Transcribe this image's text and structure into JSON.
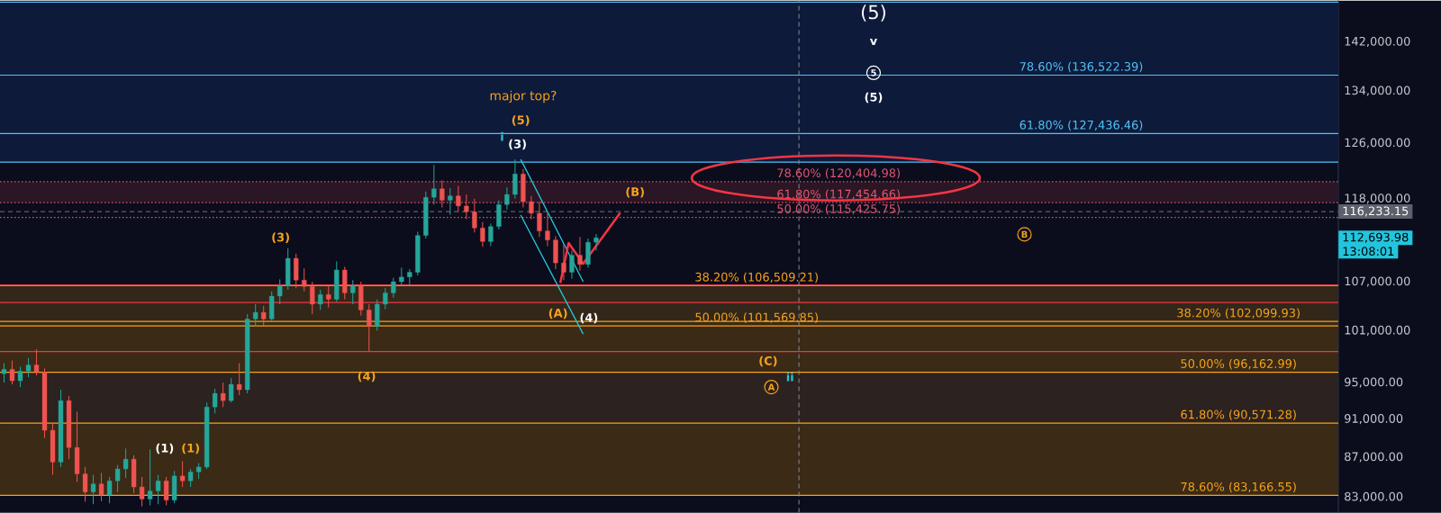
{
  "chart_data": {
    "type": "candlestick",
    "log": true,
    "tick_labels": "y",
    "ylim": [
      81500,
      149100
    ],
    "yticks": [
      {
        "value": 83000,
        "label": "83,000.00"
      },
      {
        "value": 87000,
        "label": "87,000.00"
      },
      {
        "value": 91000,
        "label": "91,000.00"
      },
      {
        "value": 95000,
        "label": "95,000.00"
      },
      {
        "value": 101000,
        "label": "101,000.00"
      },
      {
        "value": 107000,
        "label": "107,000.00"
      },
      {
        "value": 118000,
        "label": "118,000.00"
      },
      {
        "value": 126000,
        "label": "126,000.00"
      },
      {
        "value": 134000,
        "label": "134,000.00"
      },
      {
        "value": 142000,
        "label": "142,000.00"
      }
    ],
    "categories": [
      null,
      null,
      null,
      null,
      null,
      null,
      null,
      null,
      null,
      null,
      null,
      null,
      null,
      null,
      null,
      null,
      null,
      null,
      null,
      null,
      null,
      null,
      null,
      null,
      null,
      null,
      null,
      null,
      null,
      null,
      null,
      null,
      null,
      null,
      null,
      null,
      null,
      null,
      null,
      null,
      null,
      null,
      null,
      null,
      null,
      null,
      null,
      null,
      null,
      null,
      null,
      null,
      null,
      null,
      null,
      null,
      null,
      null,
      null,
      null,
      null,
      null,
      null,
      null,
      null,
      null,
      null,
      null,
      null,
      null,
      null,
      null,
      null,
      null,
      null,
      null,
      null,
      null,
      null,
      null,
      null,
      null,
      null,
      null,
      null,
      null,
      null,
      null,
      null,
      null,
      null,
      null,
      null,
      null,
      null,
      null,
      null,
      null,
      null,
      null,
      null,
      null,
      null,
      null,
      null,
      null,
      null,
      null,
      null,
      null,
      null,
      null,
      null,
      null,
      null,
      null,
      null,
      null,
      null,
      null,
      null,
      null,
      null,
      null,
      null,
      null,
      null,
      null,
      null,
      null,
      null,
      null,
      null,
      null,
      null,
      null,
      null,
      null,
      null,
      null,
      null,
      null,
      null,
      null,
      null,
      null,
      null,
      null,
      null,
      null,
      null,
      null,
      null,
      null,
      null,
      null,
      null,
      null,
      null,
      null,
      null,
      null,
      null,
      null,
      null
    ],
    "ohlc": [
      [
        96000,
        97200,
        95000,
        96500
      ],
      [
        96500,
        97500,
        94800,
        95200
      ],
      [
        95200,
        96800,
        94500,
        96300
      ],
      [
        96300,
        97800,
        95600,
        97000
      ],
      [
        97000,
        98800,
        95800,
        96200
      ],
      [
        96200,
        96600,
        89000,
        89800
      ],
      [
        89800,
        90500,
        85200,
        86500
      ],
      [
        86500,
        94200,
        86000,
        93000
      ],
      [
        93000,
        93500,
        86800,
        88000
      ],
      [
        88000,
        91800,
        84500,
        85300
      ],
      [
        85300,
        86000,
        82550,
        83500
      ],
      [
        83500,
        85200,
        82300,
        84300
      ],
      [
        84300,
        85400,
        82600,
        83200
      ],
      [
        83200,
        85000,
        82400,
        84600
      ],
      [
        84600,
        86200,
        83500,
        85800
      ],
      [
        85800,
        87900,
        84900,
        86800
      ],
      [
        86800,
        87200,
        83400,
        84000
      ],
      [
        84000,
        85000,
        82100,
        82800
      ],
      [
        82800,
        87800,
        82200,
        83600
      ],
      [
        83600,
        85200,
        82300,
        84600
      ],
      [
        84600,
        85000,
        82200,
        82700
      ],
      [
        82700,
        85600,
        82400,
        85100
      ],
      [
        85100,
        86600,
        84000,
        84600
      ],
      [
        84600,
        85800,
        84000,
        85500
      ],
      [
        85500,
        86400,
        84800,
        86000
      ],
      [
        86000,
        92800,
        85800,
        92300
      ],
      [
        92300,
        94300,
        91600,
        93800
      ],
      [
        93800,
        95000,
        92300,
        93000
      ],
      [
        93000,
        95500,
        92800,
        94800
      ],
      [
        94800,
        97200,
        93600,
        94200
      ],
      [
        94200,
        103000,
        93800,
        102400
      ],
      [
        102400,
        104200,
        101500,
        103200
      ],
      [
        103200,
        104000,
        101600,
        102400
      ],
      [
        102400,
        105800,
        102000,
        105200
      ],
      [
        105200,
        107300,
        104200,
        106500
      ],
      [
        106500,
        111300,
        106000,
        110000
      ],
      [
        110000,
        110600,
        106200,
        107200
      ],
      [
        107200,
        108700,
        105800,
        106400
      ],
      [
        106400,
        107000,
        103000,
        104200
      ],
      [
        104200,
        106000,
        103500,
        105400
      ],
      [
        105400,
        106500,
        103800,
        104800
      ],
      [
        104800,
        109600,
        104500,
        108500
      ],
      [
        108500,
        108900,
        104800,
        105600
      ],
      [
        105600,
        107200,
        104200,
        106500
      ],
      [
        106500,
        107000,
        102800,
        103500
      ],
      [
        103500,
        104200,
        98560,
        101500
      ],
      [
        101500,
        104800,
        101000,
        104200
      ],
      [
        104200,
        106200,
        103600,
        105600
      ],
      [
        105600,
        107500,
        105000,
        107000
      ],
      [
        107000,
        108800,
        106500,
        107600
      ],
      [
        107600,
        108600,
        106600,
        108200
      ],
      [
        108200,
        113500,
        107800,
        113000
      ],
      [
        113000,
        119000,
        112600,
        118200
      ],
      [
        118200,
        122800,
        117200,
        119400
      ],
      [
        119400,
        120600,
        116800,
        117800
      ],
      [
        117800,
        119500,
        115800,
        118400
      ],
      [
        118400,
        119800,
        116200,
        117000
      ],
      [
        117000,
        118600,
        115200,
        116200
      ],
      [
        116200,
        118000,
        113400,
        114000
      ],
      [
        114000,
        114800,
        111500,
        112200
      ],
      [
        112200,
        114600,
        111600,
        114200
      ],
      [
        114200,
        117800,
        113800,
        117200
      ],
      [
        117200,
        119600,
        116500,
        118600
      ],
      [
        118600,
        123600,
        118000,
        121500
      ],
      [
        121500,
        122200,
        116800,
        117600
      ],
      [
        117600,
        118400,
        115200,
        116000
      ],
      [
        116000,
        117600,
        112800,
        113600
      ],
      [
        113600,
        116000,
        111600,
        112400
      ],
      [
        112400,
        112900,
        108600,
        109400
      ],
      [
        109400,
        111800,
        107200,
        108200
      ],
      [
        108200,
        111000,
        107400,
        110400
      ],
      [
        110400,
        112800,
        108400,
        109200
      ],
      [
        109200,
        112600,
        108800,
        112100
      ],
      [
        112100,
        113200,
        111000,
        112693.98
      ],
      null,
      null,
      null,
      null,
      null,
      null,
      null,
      null,
      null,
      null,
      null,
      null,
      null,
      null,
      null,
      null,
      null,
      null,
      null,
      null,
      null,
      null,
      null,
      null,
      null,
      null,
      null,
      null,
      null,
      null,
      null,
      null,
      null,
      null,
      null,
      null,
      null,
      null,
      null,
      null,
      null,
      null,
      null,
      null,
      null,
      null,
      null,
      null,
      null,
      null,
      null,
      null,
      null,
      null,
      null,
      null,
      null,
      null,
      null,
      null,
      null,
      null,
      null,
      null,
      null,
      null,
      null,
      null,
      null,
      null,
      null,
      null,
      null,
      null,
      null,
      null,
      null,
      null,
      null,
      null,
      null,
      null,
      null,
      null,
      null,
      null,
      null,
      null,
      null,
      null,
      null
    ],
    "colors": [
      "#26a69a",
      "#ef5350",
      "#26a69a",
      "#26a69a",
      "#ef5350",
      "#ef5350",
      "#ef5350",
      "#26a69a",
      "#ef5350",
      "#ef5350",
      "#ef5350",
      "#26a69a",
      "#ef5350",
      "#26a69a",
      "#26a69a",
      "#26a69a",
      "#ef5350",
      "#ef5350",
      "#26a69a",
      "#26a69a",
      "#ef5350",
      "#26a69a",
      "#ef5350",
      "#26a69a",
      "#26a69a",
      "#26a69a",
      "#26a69a",
      "#ef5350",
      "#26a69a",
      "#ef5350",
      "#26a69a",
      "#26a69a",
      "#ef5350",
      "#26a69a",
      "#26a69a",
      "#26a69a",
      "#ef5350",
      "#ef5350",
      "#ef5350",
      "#26a69a",
      "#ef5350",
      "#26a69a",
      "#ef5350",
      "#26a69a",
      "#ef5350",
      "#ef5350",
      "#26a69a",
      "#26a69a",
      "#26a69a",
      "#26a69a",
      "#26a69a",
      "#26a69a",
      "#26a69a",
      "#26a69a",
      "#ef5350",
      "#26a69a",
      "#ef5350",
      "#ef5350",
      "#ef5350",
      "#ef5350",
      "#26a69a",
      "#26a69a",
      "#26a69a",
      "#26a69a",
      "#ef5350",
      "#ef5350",
      "#ef5350",
      "#ef5350",
      "#ef5350",
      "#ef5350",
      "#26a69a",
      "#ef5350",
      "#26a69a",
      "#26a69a",
      null,
      null,
      null,
      null,
      null,
      null,
      null,
      null,
      null,
      null,
      null,
      null,
      null,
      null,
      null,
      null,
      null,
      null,
      null,
      null,
      null,
      null,
      null,
      null,
      null,
      null,
      null,
      null,
      null,
      null,
      null,
      null,
      null,
      null,
      null,
      null,
      null,
      null,
      null,
      null,
      null,
      null,
      null,
      null,
      null,
      null,
      null,
      null,
      null,
      null,
      null,
      null,
      null,
      null,
      null,
      null,
      null,
      null,
      null,
      null,
      null,
      null,
      null,
      null,
      null,
      null,
      null,
      null,
      null,
      null,
      null,
      null,
      null,
      null,
      null,
      null,
      null,
      null,
      null,
      null,
      null,
      null,
      null,
      null,
      null,
      null,
      null,
      null,
      null,
      null,
      null
    ],
    "bands": [
      {
        "axis": "y",
        "from": 123200,
        "to": 148800,
        "color": "#0e1a3a"
      },
      {
        "axis": "y",
        "from": 117454.66,
        "to": 120404.98,
        "color": "#2a1624"
      },
      {
        "axis": "y",
        "from": 101569.85,
        "to": 106509.21,
        "color": "#33271a"
      },
      {
        "axis": "y",
        "from": 96162.99,
        "to": 102099.93,
        "color": "#3a2a16"
      },
      {
        "axis": "y",
        "from": 90571.28,
        "to": 96162.99,
        "color": "#2c221f"
      },
      {
        "axis": "y",
        "from": 83166.55,
        "to": 90571.28,
        "color": "#3a2a16"
      }
    ],
    "ref_lines": [
      {
        "axis": "y",
        "value": 148800,
        "color": "#4fc3f7",
        "line_style": "solid"
      },
      {
        "axis": "y",
        "value": 136522.39,
        "color": "#4fc3f7",
        "line_style": "solid",
        "label": "78.60% (136,522.39)"
      },
      {
        "axis": "y",
        "value": 127436.46,
        "color": "#4fc3f7",
        "line_style": "solid",
        "label": "61.80% (127,436.46)"
      },
      {
        "axis": "y",
        "value": 123200,
        "color": "#4fc3f7",
        "line_style": "solid"
      },
      {
        "axis": "y",
        "value": 120404.98,
        "color": "#e05570",
        "line_style": "dotted",
        "label": "78.60% (120,404.98)"
      },
      {
        "axis": "y",
        "value": 117454.66,
        "color": "#e05570",
        "line_style": "dotted",
        "label": "61.80% (117,454.66)"
      },
      {
        "axis": "y",
        "value": 115425.75,
        "color": "#e05570",
        "line_style": "dotted",
        "label": "50.00% (115,425.75)"
      },
      {
        "axis": "y",
        "value": 106509.21,
        "color": "#f7a21b",
        "line_style": "solid",
        "label": "38.20% (106,509.21)"
      },
      {
        "axis": "y",
        "value": 101569.85,
        "color": "#f7a21b",
        "line_style": "solid",
        "label": "50.00% (101,569.85)"
      },
      {
        "axis": "y",
        "value": 102099.93,
        "color": "#f7a21b",
        "line_style": "solid",
        "label": "38.20% (102,099.93)"
      },
      {
        "axis": "y",
        "value": 96162.99,
        "color": "#f7a21b",
        "line_style": "solid",
        "label": "50.00% (96,162.99)"
      },
      {
        "axis": "y",
        "value": 90571.28,
        "color": "#f7a21b",
        "line_style": "solid",
        "label": "61.80% (90,571.28)"
      },
      {
        "axis": "y",
        "value": 83166.55,
        "color": "#f7a21b",
        "line_style": "solid",
        "label": "78.60% (83,166.55)"
      },
      {
        "axis": "y",
        "value": 106600,
        "color": "#f23645",
        "line_style": "solid"
      },
      {
        "axis": "y",
        "value": 104400,
        "color": "#f23645",
        "line_style": "solid"
      },
      {
        "axis": "y",
        "value": 98550,
        "color": "#f23645",
        "line_style": "solid"
      },
      {
        "axis": "y",
        "value": 116233.15,
        "color": "#5d606b",
        "line_style": "dashed",
        "label": "116,233.15"
      }
    ],
    "annotations": [
      "(5)",
      "v",
      "5",
      "(5)",
      "major top?",
      "i",
      "(5)",
      "(3)",
      "(B)",
      "(3)",
      "(A)",
      "(4)",
      "(4)",
      "(C)",
      "A",
      "ii",
      "B",
      "(1)",
      "(1)",
      "112,693.98",
      "13:08:01"
    ]
  }
}
